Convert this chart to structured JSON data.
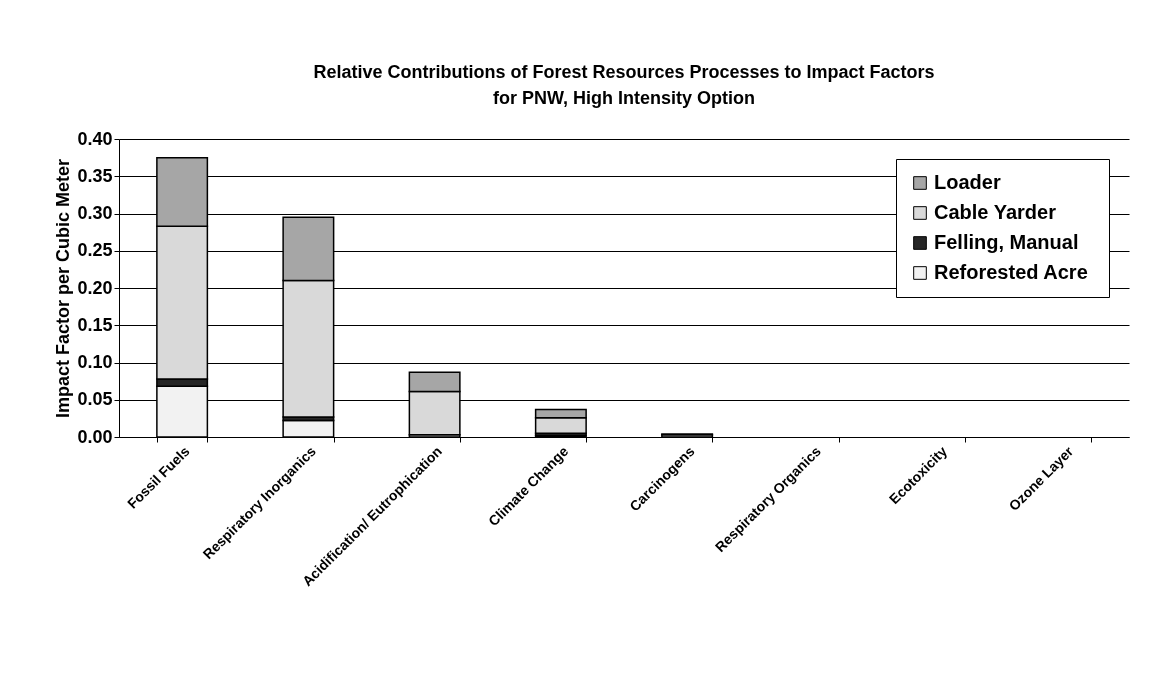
{
  "chart_data": {
    "type": "bar",
    "title": "Relative Contributions of Forest Resources Processes to Impact Factors\nfor PNW, High Intensity Option",
    "ylabel": "Impact Factor per Cubic Meter",
    "categories": [
      "Fossil Fuels",
      "Respiratory Inorganics",
      "Acidification/ Eutrophication",
      "Climate Change",
      "Carcinogens",
      "Respiratory Organics",
      "Ecotoxicity",
      "Ozone Layer"
    ],
    "stacked": true,
    "series": [
      {
        "name": "Reforested  Acre",
        "color": "#f2f2f2",
        "values": [
          0.068,
          0.022,
          0.003,
          0.002,
          null,
          null,
          null,
          null
        ]
      },
      {
        "name": "Felling, Manual",
        "color": "#262626",
        "values": [
          0.01,
          0.005,
          null,
          0.003,
          null,
          null,
          null,
          null
        ]
      },
      {
        "name": "Cable Yarder",
        "color": "#d9d9d9",
        "values": [
          0.205,
          0.183,
          0.058,
          0.021,
          0.003,
          null,
          null,
          null
        ]
      },
      {
        "name": "Loader",
        "color": "#a6a6a6",
        "values": [
          0.092,
          0.085,
          0.026,
          0.011,
          0.001,
          null,
          null,
          null
        ]
      }
    ],
    "ylim": [
      0,
      0.4
    ],
    "yticks": [
      {
        "value": 0,
        "label": "0.00"
      },
      {
        "value": 0.05,
        "label": "0.05"
      },
      {
        "value": 0.1,
        "label": "0.10"
      },
      {
        "value": 0.15,
        "label": "0.15"
      },
      {
        "value": 0.2,
        "label": "0.20"
      },
      {
        "value": 0.25,
        "label": "0.25"
      },
      {
        "value": 0.3,
        "label": "0.30"
      },
      {
        "value": 0.35,
        "label": "0.35"
      },
      {
        "value": 0.4,
        "label": "0.40"
      }
    ],
    "grid": "y",
    "legend": "top right"
  }
}
